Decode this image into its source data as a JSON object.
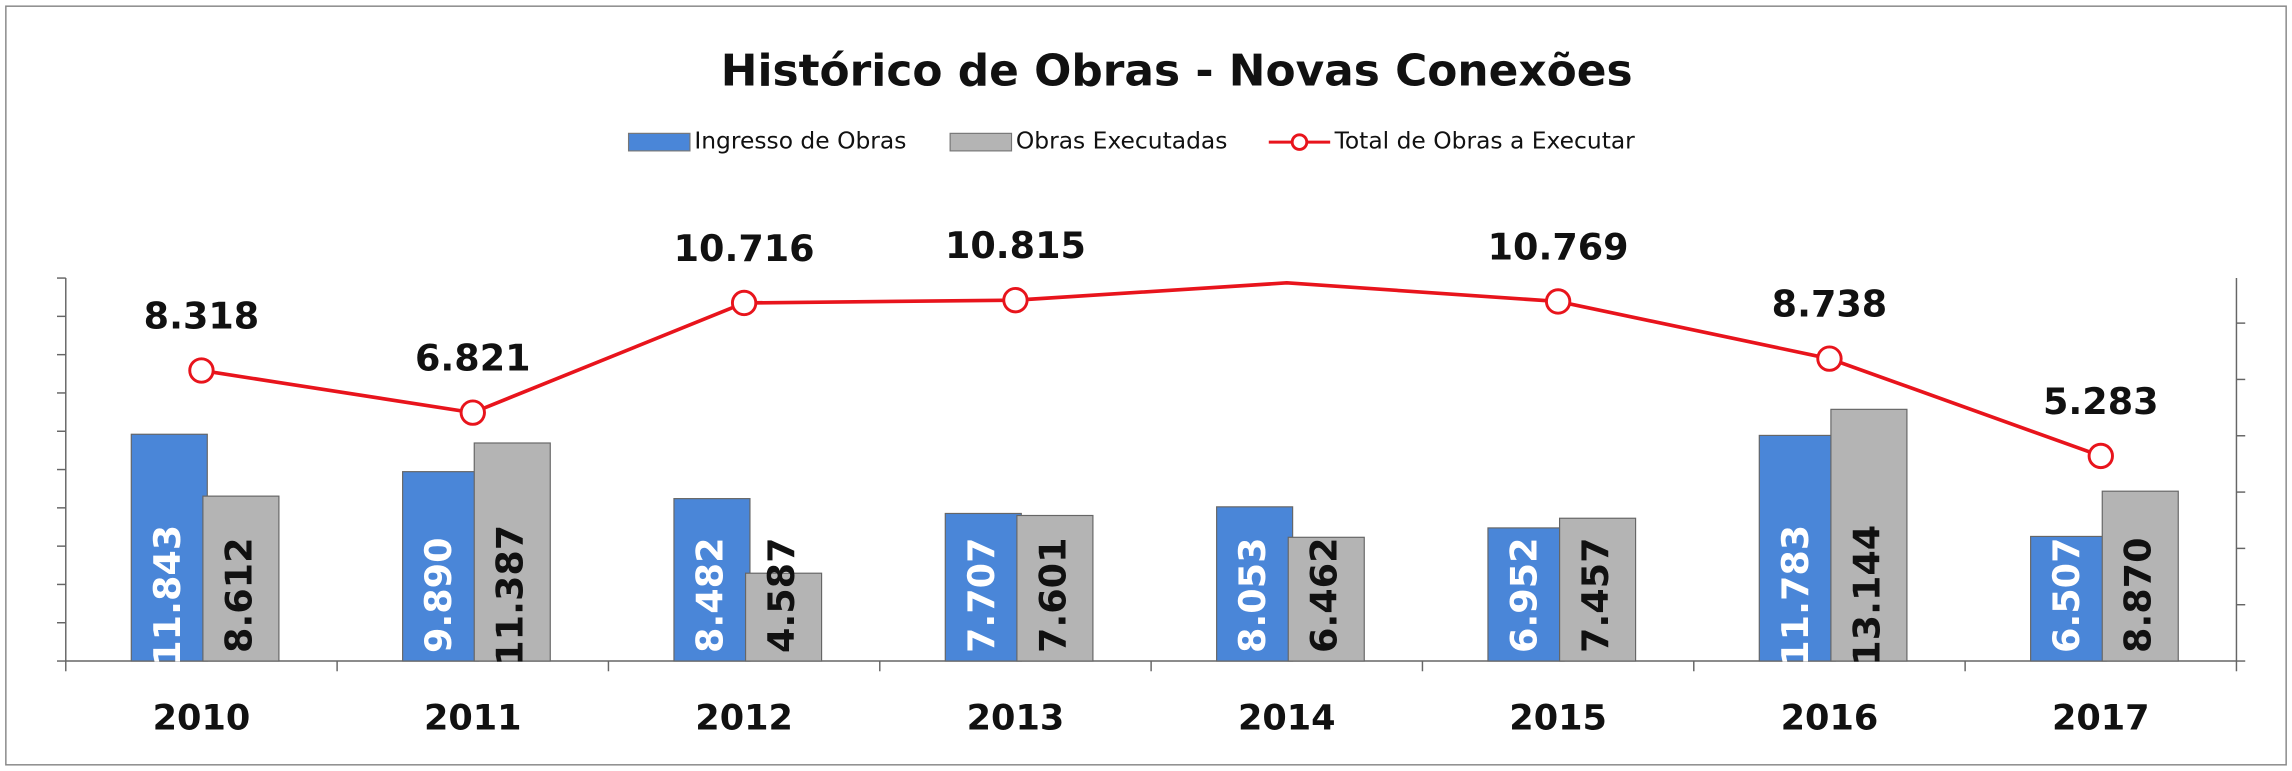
{
  "chart_data": {
    "type": "bar-line",
    "title": "Histórico de Obras - Novas Conexões",
    "categories": [
      "2010",
      "2011",
      "2012",
      "2013",
      "2014",
      "2015",
      "2016",
      "2017"
    ],
    "series": [
      {
        "name": "Ingresso de Obras",
        "type": "bar",
        "color": "#4a86d8",
        "values": [
          11843,
          9890,
          8482,
          7707,
          8053,
          6952,
          11783,
          6507
        ],
        "value_labels": [
          "11.843",
          "9.890",
          "8.482",
          "7.707",
          "8.053",
          "6.952",
          "11.783",
          "6.507"
        ]
      },
      {
        "name": "Obras Executadas",
        "type": "bar",
        "color": "#b4b4b4",
        "values": [
          8612,
          11387,
          4587,
          7601,
          6462,
          7457,
          13144,
          8870
        ],
        "value_labels": [
          "8.612",
          "11.387",
          "4.587",
          "7.601",
          "6.462",
          "7.457",
          "13.144",
          "8.870"
        ]
      },
      {
        "name": "Total de Obras a Executar",
        "type": "line",
        "axis": "y2",
        "color": "#e8141c",
        "values": [
          8318,
          6821,
          10716,
          10815,
          11430,
          10769,
          8738,
          5283
        ],
        "value_labels": [
          "8.318",
          "6.821",
          "10.716",
          "10.815",
          null,
          "10.769",
          "8.738",
          "5.283"
        ]
      }
    ],
    "ylim": [
      0,
      20000
    ],
    "yticks": [
      0,
      2000,
      4000,
      6000,
      8000,
      10000,
      12000,
      14000,
      16000,
      18000,
      20000
    ],
    "y2lim": [
      -2000,
      11600
    ],
    "y2ticks": [
      -2000,
      0,
      2000,
      4000,
      6000,
      8000,
      10000
    ]
  }
}
